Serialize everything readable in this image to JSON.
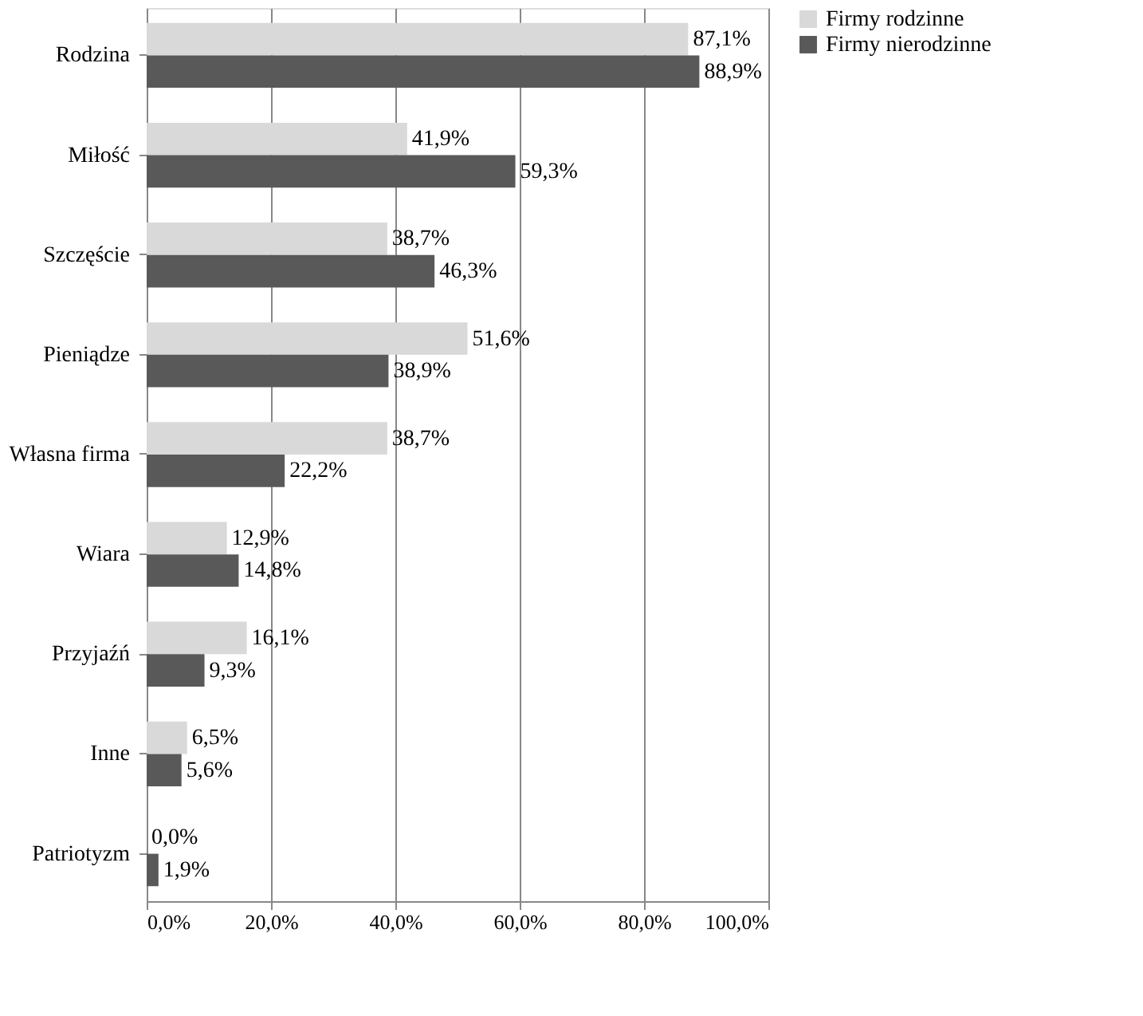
{
  "chart_data": {
    "type": "bar",
    "orientation": "horizontal",
    "categories": [
      "Rodzina",
      "Miłość",
      "Szczęście",
      "Pieniądze",
      "Własna firma",
      "Wiara",
      "Przyjaźń",
      "Inne",
      "Patriotyzm"
    ],
    "series": [
      {
        "name": "Firmy rodzinne",
        "color": "#d9d9d9",
        "values": [
          87.1,
          41.9,
          38.7,
          51.6,
          38.7,
          12.9,
          16.1,
          6.5,
          0.0
        ],
        "value_labels": [
          "87,1%",
          "41,9%",
          "38,7%",
          "51,6%",
          "38,7%",
          "12,9%",
          "16,1%",
          "6,5%",
          "0,0%"
        ]
      },
      {
        "name": "Firmy nierodzinne",
        "color": "#595959",
        "values": [
          88.9,
          59.3,
          46.3,
          38.9,
          22.2,
          14.8,
          9.3,
          5.6,
          1.9
        ],
        "value_labels": [
          "88,9%",
          "59,3%",
          "46,3%",
          "38,9%",
          "22,2%",
          "14,8%",
          "9,3%",
          "5,6%",
          "1,9%"
        ]
      }
    ],
    "xlim": [
      0,
      100
    ],
    "xticks": [
      {
        "value": 0,
        "label": "0,0%"
      },
      {
        "value": 20,
        "label": "20,0%"
      },
      {
        "value": 40,
        "label": "40,0%"
      },
      {
        "value": 60,
        "label": "60,0%"
      },
      {
        "value": 80,
        "label": "80,0%"
      },
      {
        "value": 100,
        "label": "100,0%"
      }
    ],
    "grid": "x",
    "legend": "right"
  }
}
